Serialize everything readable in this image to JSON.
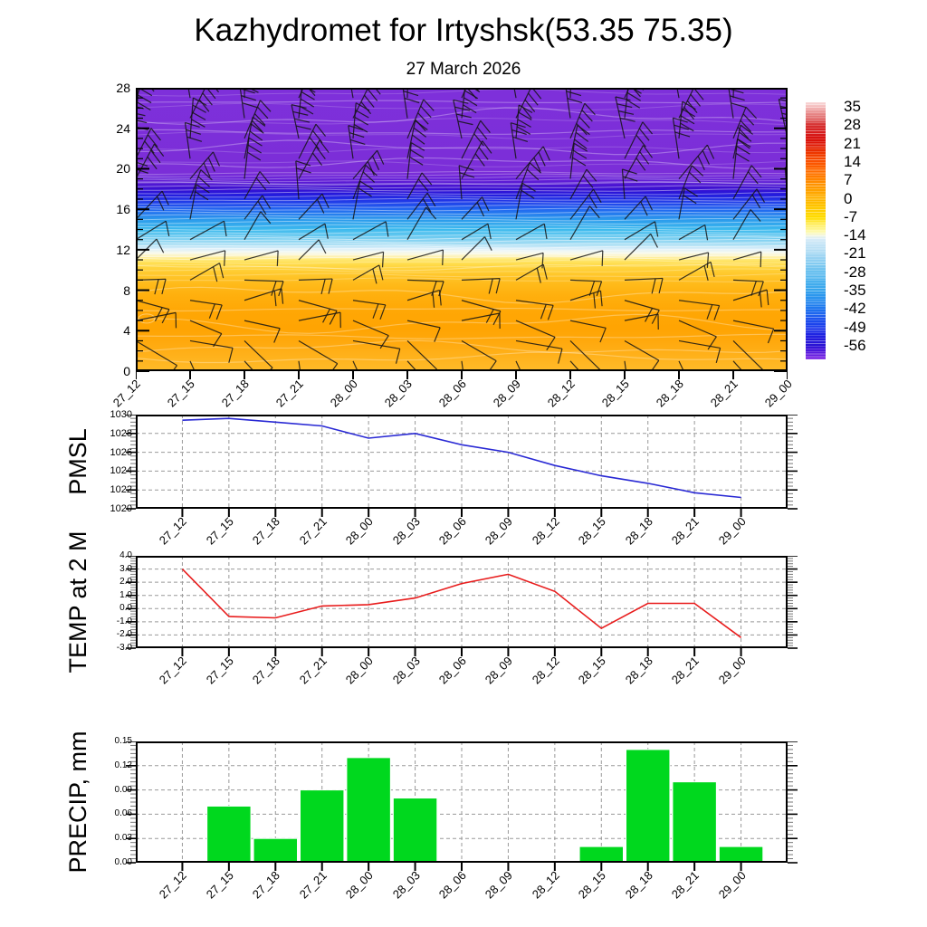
{
  "page": {
    "title": "Kazhydromet for Irtyshsk(53.35 75.35)",
    "subtitle": "27 March 2026"
  },
  "time_labels": [
    "27_12",
    "27_15",
    "27_18",
    "27_21",
    "28_00",
    "28_03",
    "28_06",
    "28_09",
    "28_12",
    "28_15",
    "28_18",
    "28_21",
    "29_00"
  ],
  "chart_data": [
    {
      "type": "heatmap",
      "name": "wind-temperature-cross-section",
      "x": [
        "27_12",
        "27_15",
        "27_18",
        "27_21",
        "28_00",
        "28_03",
        "28_06",
        "28_09",
        "28_12",
        "28_15",
        "28_18",
        "28_21",
        "29_00"
      ],
      "ylim": [
        0,
        28
      ],
      "yticks": [
        0,
        4,
        8,
        12,
        16,
        20,
        24,
        28
      ],
      "grid": false,
      "legend_position": "right-colorbar",
      "colorbar_ticks": [
        35,
        28,
        21,
        14,
        7,
        0,
        -7,
        -14,
        -21,
        -28,
        -35,
        -42,
        -49,
        -56
      ],
      "colorbar_gradient": [
        [
          0,
          "#f9d8d8"
        ],
        [
          0.02,
          "#f3b6b6"
        ],
        [
          0.05,
          "#e57f7f"
        ],
        [
          0.089,
          "#d63030"
        ],
        [
          0.13,
          "#d61414"
        ],
        [
          0.161,
          "#dd1505"
        ],
        [
          0.2,
          "#ef3a00"
        ],
        [
          0.232,
          "#fa5200"
        ],
        [
          0.27,
          "#ff6f00"
        ],
        [
          0.304,
          "#ff8800"
        ],
        [
          0.34,
          "#ffa000"
        ],
        [
          0.375,
          "#ffb400"
        ],
        [
          0.41,
          "#ffc800"
        ],
        [
          0.447,
          "#ffdc00"
        ],
        [
          0.48,
          "#fff06a"
        ],
        [
          0.505,
          "#fdfab4"
        ],
        [
          0.518,
          "#f3f7e0"
        ],
        [
          0.53,
          "#d9ecf8"
        ],
        [
          0.56,
          "#bfe2f5"
        ],
        [
          0.59,
          "#a6d8f3"
        ],
        [
          0.625,
          "#86ccf1"
        ],
        [
          0.66,
          "#68c0ef"
        ],
        [
          0.695,
          "#4bb2ee"
        ],
        [
          0.73,
          "#35a4ec"
        ],
        [
          0.765,
          "#278fee"
        ],
        [
          0.8,
          "#1f78ee"
        ],
        [
          0.84,
          "#1d55ee"
        ],
        [
          0.875,
          "#1c3bec"
        ],
        [
          0.91,
          "#201fe0"
        ],
        [
          0.946,
          "#2a12d4"
        ],
        [
          0.97,
          "#5318dc"
        ],
        [
          1,
          "#7e22e4"
        ]
      ],
      "field_gradient": [
        [
          0,
          "#7e30da"
        ],
        [
          0.3,
          "#7b2ed8"
        ],
        [
          0.33,
          "#5f1cd6"
        ],
        [
          0.355,
          "#3b0fd0"
        ],
        [
          0.375,
          "#2418dc"
        ],
        [
          0.4,
          "#2139e8"
        ],
        [
          0.43,
          "#2168f0"
        ],
        [
          0.465,
          "#2b9aec"
        ],
        [
          0.5,
          "#3cbaee"
        ],
        [
          0.53,
          "#72ccf0"
        ],
        [
          0.553,
          "#aadff4"
        ],
        [
          0.568,
          "#dbeffa"
        ],
        [
          0.582,
          "#f6f9ec"
        ],
        [
          0.593,
          "#fdf4c2"
        ],
        [
          0.606,
          "#ffe872"
        ],
        [
          0.625,
          "#ffda46"
        ],
        [
          0.65,
          "#ffcb30"
        ],
        [
          0.69,
          "#ffbb1b"
        ],
        [
          0.73,
          "#ffb00e"
        ],
        [
          0.79,
          "#ffa705"
        ],
        [
          0.85,
          "#ffa402"
        ],
        [
          0.9,
          "#ffa90e"
        ],
        [
          0.95,
          "#ffb21c"
        ],
        [
          1,
          "#ffbb2a"
        ]
      ],
      "wind_rows": [
        {
          "height": 27,
          "angle": 5,
          "feathers": 4,
          "feather_angle": 115,
          "length": 42
        },
        {
          "height": 25,
          "angle": 8,
          "feathers": 4,
          "feather_angle": 115,
          "length": 42
        },
        {
          "height": 23,
          "angle": 5,
          "feathers": 4,
          "feather_angle": 115,
          "length": 42
        },
        {
          "height": 21,
          "angle": 10,
          "feathers": 3,
          "feather_angle": 115,
          "length": 42
        },
        {
          "height": 19,
          "angle": 25,
          "feathers": 3,
          "feather_angle": 115,
          "length": 44
        },
        {
          "height": 17,
          "angle": 15,
          "feathers": 2,
          "feather_angle": 112,
          "length": 38
        },
        {
          "height": 15,
          "angle": 30,
          "feathers": 2,
          "feather_angle": 112,
          "length": 38
        },
        {
          "height": 13,
          "angle": 50,
          "feathers": 1,
          "feather_angle": 110,
          "length": 38
        },
        {
          "height": 11,
          "angle": 65,
          "feathers": 1,
          "feather_angle": 108,
          "length": 36
        },
        {
          "height": 9,
          "angle": 80,
          "feathers": 2,
          "feather_angle": 106,
          "length": 38
        },
        {
          "height": 7,
          "angle": 92,
          "feathers": 2,
          "feather_angle": 102,
          "length": 40
        },
        {
          "height": 5,
          "angle": 98,
          "feathers": 1,
          "feather_angle": 100,
          "length": 42
        },
        {
          "height": 3,
          "angle": 118,
          "feathers": 1,
          "feather_angle": 95,
          "length": 48
        },
        {
          "height": 1,
          "angle": 155,
          "feathers": 1,
          "feather_angle": 90,
          "length": 50
        }
      ]
    },
    {
      "type": "line",
      "name": "PMSL",
      "x": [
        "27_12",
        "27_15",
        "27_18",
        "27_21",
        "28_00",
        "28_03",
        "28_06",
        "28_09",
        "28_12",
        "28_15",
        "28_18",
        "28_21",
        "29_00"
      ],
      "values": [
        1029.4,
        1029.6,
        1029.2,
        1028.8,
        1027.5,
        1028.0,
        1026.8,
        1026.0,
        1024.6,
        1023.5,
        1022.7,
        1021.7,
        1021.2
      ],
      "ylim": [
        1020,
        1030
      ],
      "yticks": [
        1020,
        1022,
        1024,
        1026,
        1028,
        1030
      ],
      "color": "#2929d4",
      "grid": true
    },
    {
      "type": "line",
      "name": "TEMP at 2 M",
      "x": [
        "27_12",
        "27_15",
        "27_18",
        "27_21",
        "28_00",
        "28_03",
        "28_06",
        "28_09",
        "28_12",
        "28_15",
        "28_18",
        "28_21",
        "29_00"
      ],
      "values": [
        3.0,
        -0.6,
        -0.7,
        0.2,
        0.3,
        0.8,
        1.9,
        2.6,
        1.3,
        -1.5,
        0.4,
        0.4,
        -2.2
      ],
      "ylim": [
        -3,
        4
      ],
      "yticks": [
        -3,
        -2,
        -1,
        0,
        1,
        2,
        3,
        4
      ],
      "color": "#e81c1c",
      "grid": true
    },
    {
      "type": "bar",
      "name": "PRECIP, mm",
      "x": [
        "27_12",
        "27_15",
        "27_18",
        "27_21",
        "28_00",
        "28_03",
        "28_06",
        "28_09",
        "28_12",
        "28_15",
        "28_18",
        "28_21",
        "29_00"
      ],
      "values": [
        0,
        0.07,
        0.03,
        0.09,
        0.13,
        0.08,
        0,
        0,
        0,
        0.02,
        0.14,
        0.1,
        0.02
      ],
      "ylim": [
        0,
        0.15
      ],
      "yticks": [
        0.0,
        0.03,
        0.06,
        0.09,
        0.12,
        0.15
      ],
      "color": "#00d81e",
      "grid": true
    }
  ]
}
